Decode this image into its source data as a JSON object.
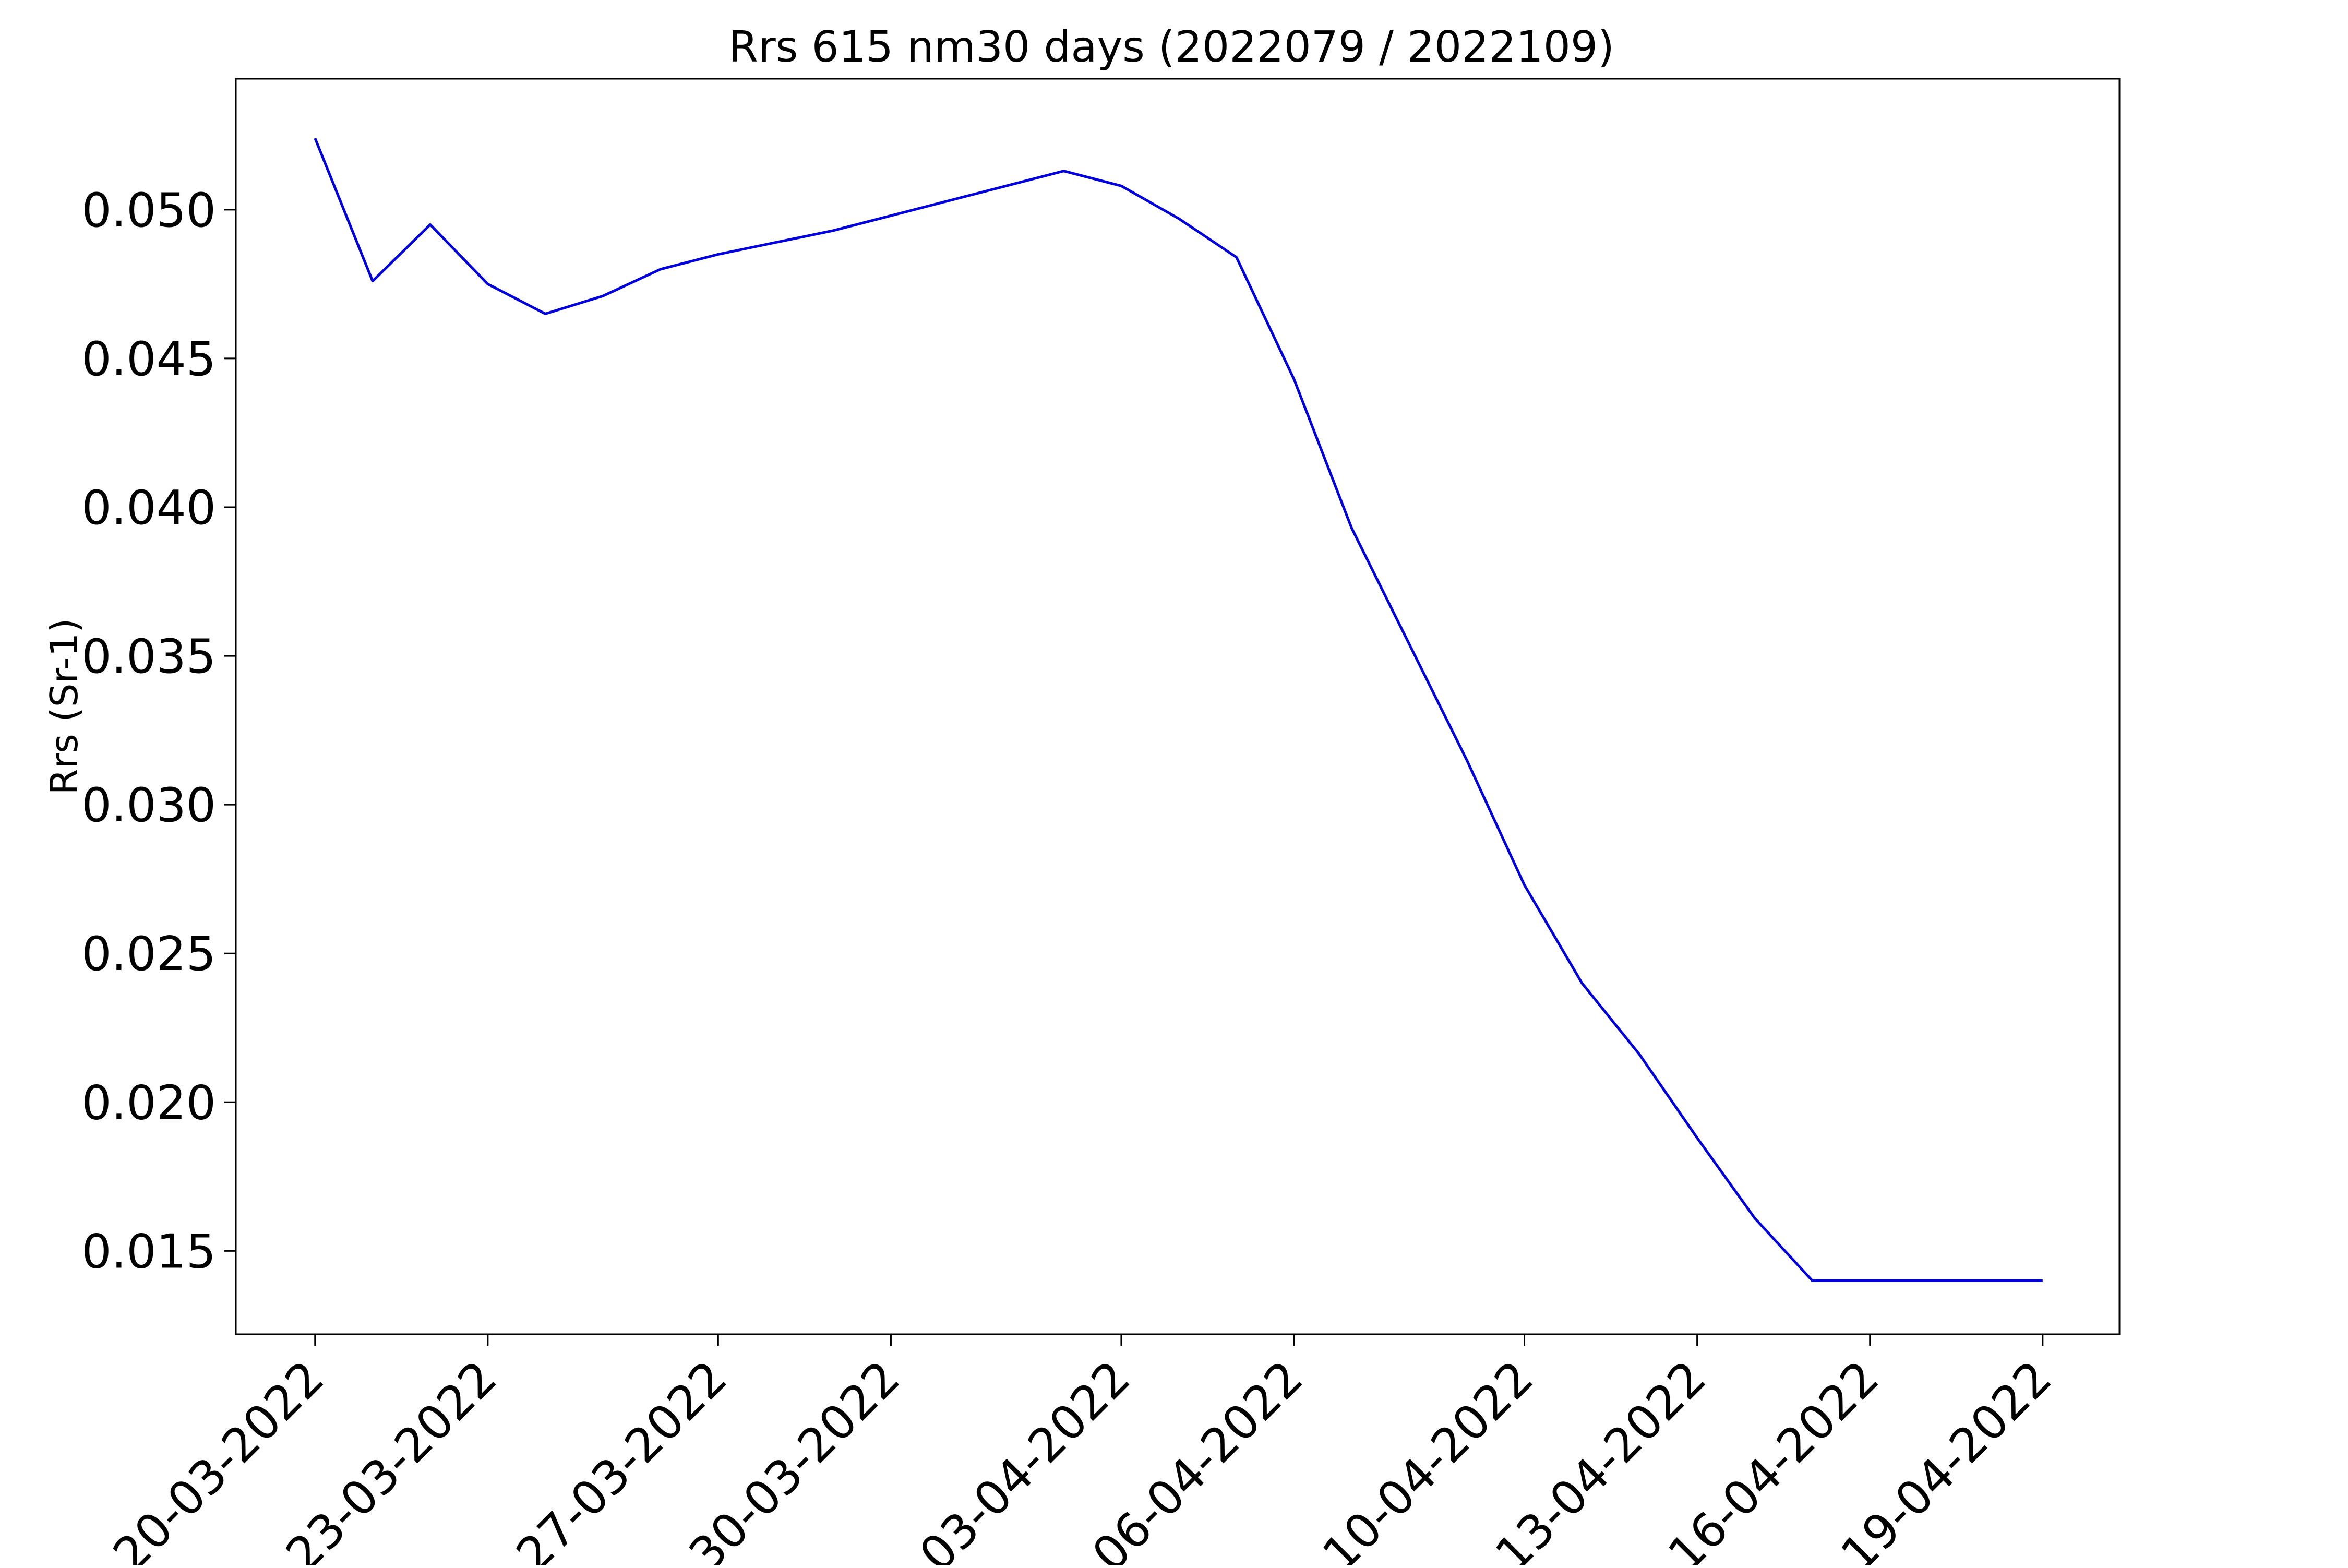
{
  "chart_data": {
    "type": "line",
    "title": "Rrs 615 nm30 days (2022079 / 2022109)",
    "xlabel": "",
    "ylabel": "Rrs (Sr-1)",
    "ylim": [
      0.0122,
      0.0544
    ],
    "yticks": [
      0.015,
      0.02,
      0.025,
      0.03,
      0.035,
      0.04,
      0.045,
      0.05
    ],
    "ytick_labels": [
      "0.015",
      "0.020",
      "0.025",
      "0.030",
      "0.035",
      "0.040",
      "0.045",
      "0.050"
    ],
    "xticks": [
      "2022-03-20",
      "2022-03-23",
      "2022-03-27",
      "2022-03-30",
      "2022-04-03",
      "2022-04-06",
      "2022-04-10",
      "2022-04-13",
      "2022-04-16",
      "2022-04-19"
    ],
    "xtick_labels": [
      "20-03-2022",
      "23-03-2022",
      "27-03-2022",
      "30-03-2022",
      "03-04-2022",
      "06-04-2022",
      "10-04-2022",
      "13-04-2022",
      "16-04-2022",
      "19-04-2022"
    ],
    "xlim": [
      "2022-03-18T15:00",
      "2022-04-20T08:00"
    ],
    "grid": false,
    "series": [
      {
        "color": "#0000dd",
        "x": [
          "2022-03-20",
          "2022-03-21",
          "2022-03-22",
          "2022-03-23",
          "2022-03-24",
          "2022-03-25",
          "2022-03-26",
          "2022-03-27",
          "2022-03-28",
          "2022-03-29",
          "2022-03-30",
          "2022-03-31",
          "2022-04-01",
          "2022-04-02",
          "2022-04-03",
          "2022-04-04",
          "2022-04-05",
          "2022-04-06",
          "2022-04-07",
          "2022-04-08",
          "2022-04-09",
          "2022-04-10",
          "2022-04-11",
          "2022-04-12",
          "2022-04-13",
          "2022-04-14",
          "2022-04-15",
          "2022-04-16",
          "2022-04-17",
          "2022-04-18",
          "2022-04-19"
        ],
        "values": [
          0.0524,
          0.0476,
          0.0495,
          0.0475,
          0.0465,
          0.0471,
          0.048,
          0.0485,
          0.0489,
          0.0493,
          0.0498,
          0.0503,
          0.0508,
          0.0513,
          0.0508,
          0.0497,
          0.0484,
          0.0443,
          0.0393,
          0.0354,
          0.0315,
          0.0273,
          0.024,
          0.0216,
          0.0188,
          0.0161,
          0.014,
          0.014,
          0.014,
          0.014,
          0.014
        ]
      }
    ]
  }
}
